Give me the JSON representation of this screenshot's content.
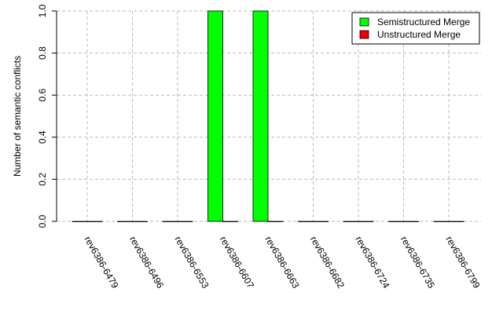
{
  "chart_data": {
    "type": "bar",
    "y_label": "Number of semantic conflicts",
    "categories": [
      "rev6386-6479",
      "rev6386-6496",
      "rev6386-6553",
      "rev6386-6607",
      "rev6386-6663",
      "rev6386-6682",
      "rev6386-6724",
      "rev6386-6735",
      "rev6386-6799"
    ],
    "series": [
      {
        "name": "Semistructured Merge",
        "color": "#00ff00",
        "values": [
          0,
          0,
          0,
          1,
          1,
          0,
          0,
          0,
          0
        ]
      },
      {
        "name": "Unstructured Merge",
        "color": "#ee0000",
        "values": [
          0,
          0,
          0,
          0,
          0,
          0,
          0,
          0,
          0
        ]
      }
    ],
    "ylim": [
      0,
      1
    ],
    "yticks": [
      {
        "value": 0,
        "label": "0.0"
      },
      0.2,
      0.4,
      0.6,
      0.8,
      {
        "value": 1,
        "label": "1.0"
      }
    ],
    "grid": true,
    "legend": "top-right"
  }
}
